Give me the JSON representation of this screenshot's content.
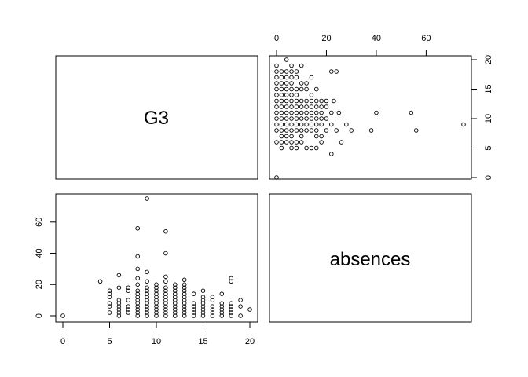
{
  "chart_data": {
    "type": "scatter",
    "variables": [
      "G3",
      "absences"
    ],
    "diagonal_labels": [
      "G3",
      "absences"
    ],
    "axes": {
      "G3": {
        "range": [
          0,
          20
        ],
        "ticks": [
          0,
          5,
          10,
          15,
          20
        ],
        "tick_labels": [
          "0",
          "5",
          "10",
          "15",
          "20"
        ]
      },
      "absences": {
        "range": [
          0,
          75
        ],
        "ticks": [
          0,
          20,
          40,
          60
        ],
        "tick_labels": [
          "0",
          "20",
          "40",
          "60"
        ]
      }
    },
    "points": [
      [
        0,
        0
      ],
      [
        4,
        22
      ],
      [
        5,
        2
      ],
      [
        5,
        6
      ],
      [
        5,
        8
      ],
      [
        5,
        12
      ],
      [
        5,
        14
      ],
      [
        5,
        16
      ],
      [
        6,
        0
      ],
      [
        6,
        2
      ],
      [
        6,
        4
      ],
      [
        6,
        6
      ],
      [
        6,
        8
      ],
      [
        6,
        10
      ],
      [
        6,
        18
      ],
      [
        6,
        26
      ],
      [
        7,
        2
      ],
      [
        7,
        4
      ],
      [
        7,
        6
      ],
      [
        7,
        10
      ],
      [
        7,
        16
      ],
      [
        7,
        18
      ],
      [
        8,
        0
      ],
      [
        8,
        2
      ],
      [
        8,
        4
      ],
      [
        8,
        6
      ],
      [
        8,
        8
      ],
      [
        8,
        10
      ],
      [
        8,
        12
      ],
      [
        8,
        14
      ],
      [
        8,
        16
      ],
      [
        8,
        20
      ],
      [
        8,
        24
      ],
      [
        8,
        30
      ],
      [
        8,
        38
      ],
      [
        8,
        56
      ],
      [
        9,
        0
      ],
      [
        9,
        2
      ],
      [
        9,
        4
      ],
      [
        9,
        6
      ],
      [
        9,
        8
      ],
      [
        9,
        10
      ],
      [
        9,
        12
      ],
      [
        9,
        14
      ],
      [
        9,
        16
      ],
      [
        9,
        18
      ],
      [
        9,
        22
      ],
      [
        9,
        28
      ],
      [
        9,
        75
      ],
      [
        10,
        0
      ],
      [
        10,
        2
      ],
      [
        10,
        4
      ],
      [
        10,
        6
      ],
      [
        10,
        8
      ],
      [
        10,
        10
      ],
      [
        10,
        12
      ],
      [
        10,
        14
      ],
      [
        10,
        16
      ],
      [
        10,
        18
      ],
      [
        10,
        20
      ],
      [
        11,
        0
      ],
      [
        11,
        2
      ],
      [
        11,
        4
      ],
      [
        11,
        6
      ],
      [
        11,
        8
      ],
      [
        11,
        10
      ],
      [
        11,
        12
      ],
      [
        11,
        14
      ],
      [
        11,
        16
      ],
      [
        11,
        18
      ],
      [
        11,
        22
      ],
      [
        11,
        25
      ],
      [
        11,
        40
      ],
      [
        11,
        54
      ],
      [
        12,
        0
      ],
      [
        12,
        2
      ],
      [
        12,
        4
      ],
      [
        12,
        6
      ],
      [
        12,
        8
      ],
      [
        12,
        10
      ],
      [
        12,
        12
      ],
      [
        12,
        14
      ],
      [
        12,
        16
      ],
      [
        12,
        18
      ],
      [
        12,
        20
      ],
      [
        13,
        0
      ],
      [
        13,
        2
      ],
      [
        13,
        4
      ],
      [
        13,
        6
      ],
      [
        13,
        8
      ],
      [
        13,
        10
      ],
      [
        13,
        12
      ],
      [
        13,
        14
      ],
      [
        13,
        16
      ],
      [
        13,
        18
      ],
      [
        13,
        20
      ],
      [
        13,
        23
      ],
      [
        14,
        0
      ],
      [
        14,
        2
      ],
      [
        14,
        4
      ],
      [
        14,
        6
      ],
      [
        14,
        8
      ],
      [
        14,
        14
      ],
      [
        15,
        0
      ],
      [
        15,
        2
      ],
      [
        15,
        4
      ],
      [
        15,
        6
      ],
      [
        15,
        8
      ],
      [
        15,
        10
      ],
      [
        15,
        12
      ],
      [
        15,
        16
      ],
      [
        16,
        0
      ],
      [
        16,
        2
      ],
      [
        16,
        4
      ],
      [
        16,
        6
      ],
      [
        16,
        10
      ],
      [
        16,
        12
      ],
      [
        17,
        0
      ],
      [
        17,
        2
      ],
      [
        17,
        4
      ],
      [
        17,
        6
      ],
      [
        17,
        8
      ],
      [
        17,
        14
      ],
      [
        18,
        0
      ],
      [
        18,
        2
      ],
      [
        18,
        4
      ],
      [
        18,
        6
      ],
      [
        18,
        8
      ],
      [
        18,
        22
      ],
      [
        18,
        24
      ],
      [
        19,
        0
      ],
      [
        19,
        6
      ],
      [
        19,
        10
      ],
      [
        20,
        4
      ]
    ]
  }
}
